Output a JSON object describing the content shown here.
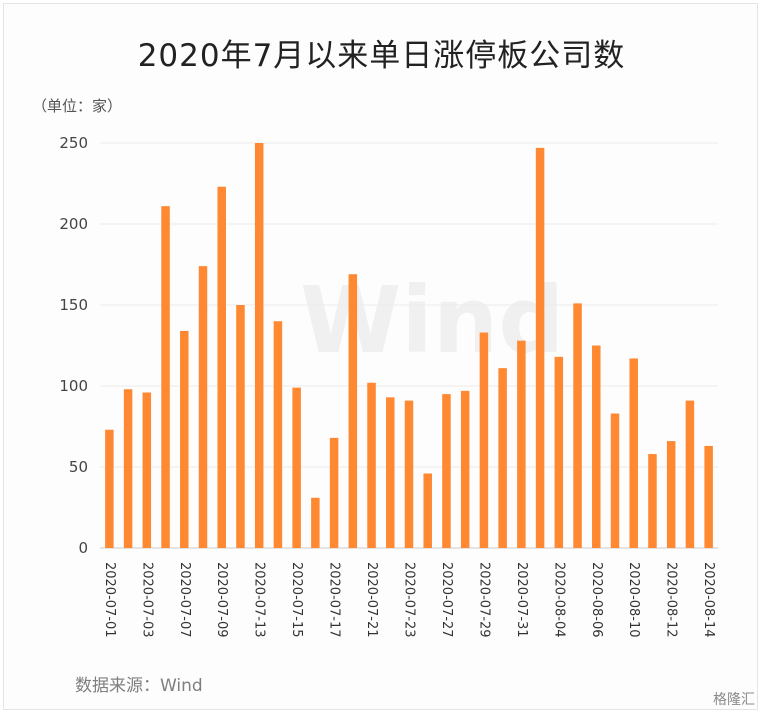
{
  "title": "2020年7月以来单日涨停板公司数",
  "unit_label": "（单位：家）",
  "source": "数据来源：Wind",
  "watermark_text": "Wind",
  "logo_text": "格隆汇",
  "colors": {
    "bar": "#FF8833",
    "grid": "#ececec",
    "axis": "#cccccc"
  },
  "chart_data": {
    "type": "bar",
    "title": "2020年7月以来单日涨停板公司数",
    "xlabel": "",
    "ylabel": "（单位：家）",
    "ylim": [
      0,
      250
    ],
    "yticks": [
      0,
      50,
      100,
      150,
      200,
      250
    ],
    "grid": true,
    "categories": [
      "2020-07-01",
      "2020-07-02",
      "2020-07-03",
      "2020-07-06",
      "2020-07-07",
      "2020-07-08",
      "2020-07-09",
      "2020-07-10",
      "2020-07-13",
      "2020-07-14",
      "2020-07-15",
      "2020-07-16",
      "2020-07-17",
      "2020-07-20",
      "2020-07-21",
      "2020-07-22",
      "2020-07-23",
      "2020-07-24",
      "2020-07-27",
      "2020-07-28",
      "2020-07-29",
      "2020-07-30",
      "2020-07-31",
      "2020-08-03",
      "2020-08-04",
      "2020-08-05",
      "2020-08-06",
      "2020-08-07",
      "2020-08-10",
      "2020-08-11",
      "2020-08-12",
      "2020-08-13",
      "2020-08-14"
    ],
    "tick_labels_shown": [
      "2020-07-01",
      "2020-07-03",
      "2020-07-07",
      "2020-07-09",
      "2020-07-13",
      "2020-07-15",
      "2020-07-17",
      "2020-07-21",
      "2020-07-23",
      "2020-07-27",
      "2020-07-29",
      "2020-07-31",
      "2020-08-04",
      "2020-08-06",
      "2020-08-10",
      "2020-08-12",
      "2020-08-14"
    ],
    "values": [
      73,
      98,
      96,
      211,
      134,
      174,
      223,
      150,
      250,
      140,
      99,
      31,
      68,
      169,
      102,
      93,
      91,
      46,
      95,
      97,
      133,
      111,
      128,
      247,
      118,
      151,
      125,
      83,
      117,
      58,
      66,
      91,
      63
    ]
  }
}
